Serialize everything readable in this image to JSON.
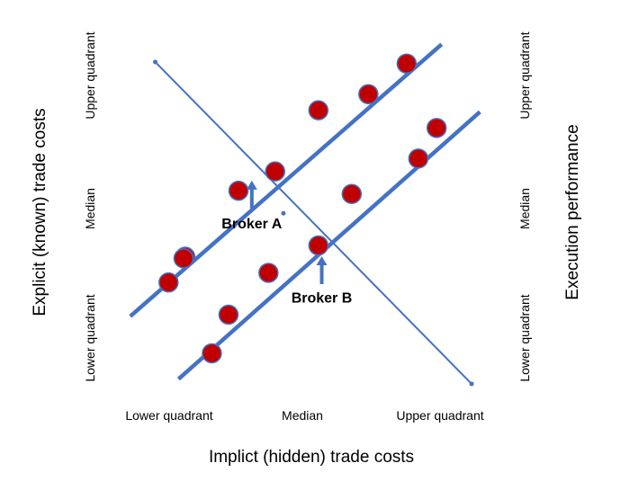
{
  "chart_data": {
    "type": "scatter",
    "title": "",
    "xlabel": "Implict (hidden) trade costs",
    "ylabel": "Explicit (known) trade costs",
    "y2label": "Execution performance",
    "xlim": [
      0,
      10
    ],
    "ylim": [
      0,
      10
    ],
    "x_ticks": [
      "Lower quadrant",
      "Median",
      "Upper quadrant"
    ],
    "x_tick_positions": [
      1.5,
      5,
      8.5
    ],
    "y_ticks": [
      "Lower quadrant",
      "Median",
      "Upper quadrant"
    ],
    "y_tick_positions": [
      1.5,
      5.5,
      9.25
    ],
    "y2_ticks": [
      "Lower quadrant",
      "Median",
      "Upper quadrant"
    ],
    "grid": false,
    "colors": {
      "line": "#4472c4",
      "point_fill": "#c00000",
      "point_stroke": "#4472c4",
      "text": "#000000"
    },
    "lines": [
      {
        "x": [
          -0.25,
          9.1
        ],
        "y": [
          1.85,
          10.3
        ],
        "thick": true
      },
      {
        "x": [
          1.2,
          10.25
        ],
        "y": [
          -0.1,
          8.2
        ],
        "thick": true
      },
      {
        "x": [
          0.5,
          10.0
        ],
        "y": [
          9.75,
          -0.25
        ],
        "thick": false,
        "endpoints": true
      }
    ],
    "points": [
      {
        "x": 0.9,
        "y": 2.9
      },
      {
        "x": 1.4,
        "y": 3.7
      },
      {
        "x": 1.35,
        "y": 3.65
      },
      {
        "x": 3.0,
        "y": 5.75
      },
      {
        "x": 4.1,
        "y": 6.35
      },
      {
        "x": 5.4,
        "y": 8.25
      },
      {
        "x": 6.9,
        "y": 8.75
      },
      {
        "x": 8.05,
        "y": 9.7
      },
      {
        "x": 2.2,
        "y": 0.7
      },
      {
        "x": 2.7,
        "y": 1.9
      },
      {
        "x": 3.9,
        "y": 3.2
      },
      {
        "x": 5.4,
        "y": 4.05
      },
      {
        "x": 6.4,
        "y": 5.65
      },
      {
        "x": 8.4,
        "y": 6.75
      },
      {
        "x": 8.95,
        "y": 7.7
      }
    ],
    "midpoint": {
      "x": 4.35,
      "y": 5.05
    },
    "annotations": [
      {
        "text": "Broker A",
        "x": 3.4,
        "y": 6.4,
        "label_x": 3.4,
        "label_y": 4.75
      },
      {
        "text": "Broker B",
        "x": 5.5,
        "y": 4.05,
        "label_x": 5.5,
        "label_y": 2.45
      }
    ]
  }
}
